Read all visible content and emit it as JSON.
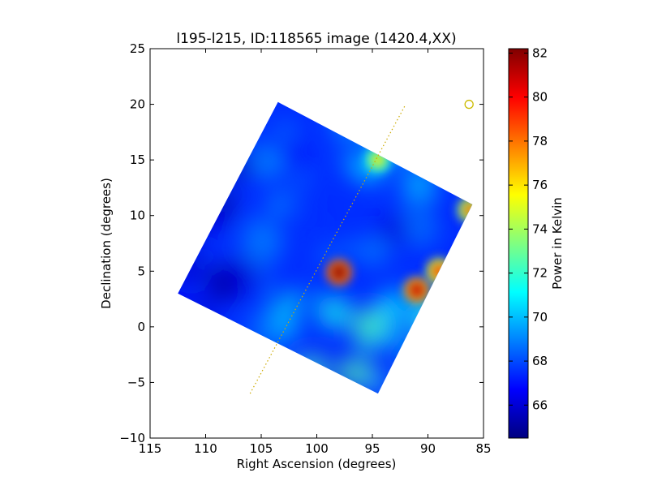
{
  "chart_data": {
    "type": "heatmap",
    "title": "l195-l215, ID:118565 image (1420.4,XX)",
    "xlabel": "Right Ascension (degrees)",
    "ylabel": "Declination (degrees)",
    "xlim": [
      115,
      85
    ],
    "ylim": [
      -10,
      25
    ],
    "xticks": [
      115,
      110,
      105,
      100,
      95,
      90,
      85
    ],
    "xtick_labels": [
      "115",
      "110",
      "105",
      "100",
      "95",
      "90",
      "85"
    ],
    "yticks": [
      25,
      20,
      15,
      10,
      5,
      0,
      -5,
      -10
    ],
    "ytick_labels": [
      "25",
      "20",
      "15",
      "10",
      "5",
      "0",
      "−5",
      "−10"
    ],
    "grid": false,
    "colorbar": {
      "label": "Power in Kelvin",
      "min": 64.5,
      "max": 82.2,
      "ticks": [
        66,
        68,
        70,
        72,
        74,
        76,
        78,
        80,
        82
      ],
      "tick_labels": [
        "66",
        "68",
        "70",
        "72",
        "74",
        "76",
        "78",
        "80",
        "82"
      ],
      "colormap": "jet",
      "stops": [
        "#000080",
        "#0000ff",
        "#0080ff",
        "#00ffff",
        "#80ff80",
        "#ffff00",
        "#ff8000",
        "#ff0000",
        "#800000"
      ]
    },
    "footprint_corners": [
      [
        103.5,
        20.2
      ],
      [
        86.0,
        11.0
      ],
      [
        94.5,
        -6.0
      ],
      [
        112.5,
        3.0
      ]
    ],
    "background_level": 67.5,
    "sources": [
      {
        "x": 98.0,
        "y": 4.9,
        "value": 82.0
      },
      {
        "x": 91.0,
        "y": 3.3,
        "value": 81.0
      },
      {
        "x": 89.0,
        "y": 5.0,
        "value": 79.0
      },
      {
        "x": 86.2,
        "y": 10.5,
        "value": 78.0
      },
      {
        "x": 94.5,
        "y": 15.0,
        "value": 76.0
      }
    ],
    "galactic_plane": {
      "color": "#ccaa00",
      "points": [
        [
          106.0,
          -6.0
        ],
        [
          92.0,
          20.0
        ]
      ]
    },
    "marker": {
      "x": 86.3,
      "y": 20.0,
      "shape": "circle",
      "color": "#ccbb00"
    }
  }
}
